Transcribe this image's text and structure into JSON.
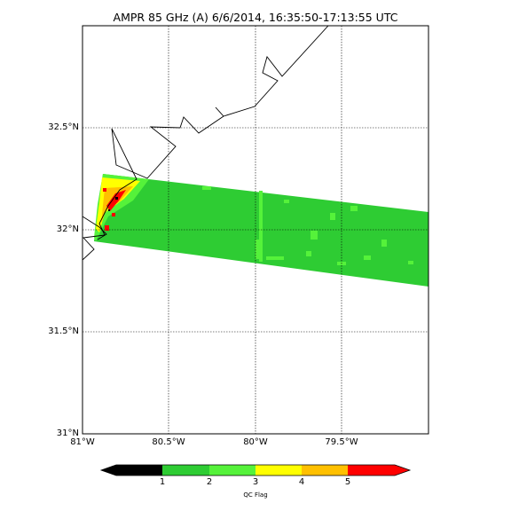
{
  "title": "AMPR 85 GHz (A) 6/6/2014, 16:35:50-17:13:55 UTC",
  "map": {
    "lat_range": [
      31.0,
      33.0
    ],
    "lon_range": [
      -81.0,
      -79.0
    ],
    "lat_labels": [
      "32.5°N",
      "32°N",
      "31.5°N",
      "31°N"
    ],
    "lon_labels": [
      "81°W",
      "80.5°W",
      "80°W",
      "79.5°W"
    ],
    "colors": {
      "flag0": "#000000",
      "flag1": "#2ecc33",
      "flag2": "#55f23a",
      "flag3": "#ffff00",
      "flag4": "#ffc000",
      "flag5": "#ff0000",
      "coast": "#000000",
      "grid": "#000000"
    },
    "swath": {
      "corners_lonlat": [
        [
          -80.88,
          32.28
        ],
        [
          -79.0,
          32.09
        ],
        [
          -79.0,
          31.72
        ],
        [
          -80.93,
          31.93
        ]
      ],
      "dominant_flag": 1
    }
  },
  "colorbar": {
    "ticks": [
      "1",
      "2",
      "3",
      "4",
      "5"
    ],
    "label": "QC Flag",
    "segment_colors": [
      "#000000",
      "#2ecc33",
      "#55f23a",
      "#ffff00",
      "#ffc000",
      "#ff0000"
    ]
  }
}
